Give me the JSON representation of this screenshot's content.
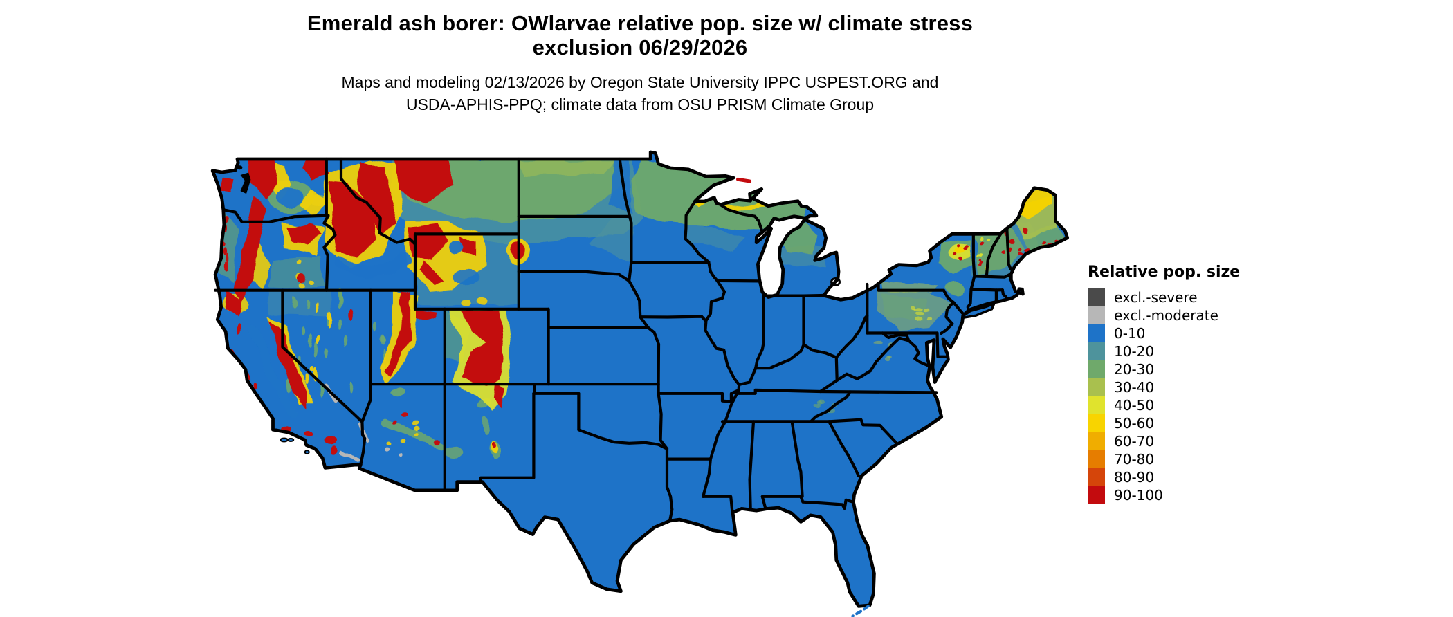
{
  "header": {
    "title_line1": "Emerald ash borer: OWlarvae relative pop. size w/ climate stress",
    "title_line2": "exclusion 06/29/2026",
    "subtitle_line1": "Maps and modeling 02/13/2026 by Oregon State University IPPC USPEST.ORG and",
    "subtitle_line2": "USDA-APHIS-PPQ; climate data from OSU PRISM Climate Group"
  },
  "legend": {
    "title": "Relative pop. size",
    "entries": [
      {
        "label": "excl.-severe",
        "color": "#4a4a4a"
      },
      {
        "label": "excl.-moderate",
        "color": "#b7b7b7"
      },
      {
        "label": "0-10",
        "color": "#1e73c8"
      },
      {
        "label": "10-20",
        "color": "#4e939c"
      },
      {
        "label": "20-30",
        "color": "#6fa96b"
      },
      {
        "label": "30-40",
        "color": "#a9c04e"
      },
      {
        "label": "40-50",
        "color": "#e0e32d"
      },
      {
        "label": "50-60",
        "color": "#f8d400"
      },
      {
        "label": "60-70",
        "color": "#f0ad00"
      },
      {
        "label": "70-80",
        "color": "#e67d00"
      },
      {
        "label": "80-90",
        "color": "#d5450a"
      },
      {
        "label": "90-100",
        "color": "#c30b0e"
      }
    ]
  },
  "map": {
    "region": "Contiguous United States",
    "style": "raster relative population size with state boundaries",
    "boundary_color": "#000000",
    "water_color": "#ffffff",
    "background": "#ffffff"
  }
}
